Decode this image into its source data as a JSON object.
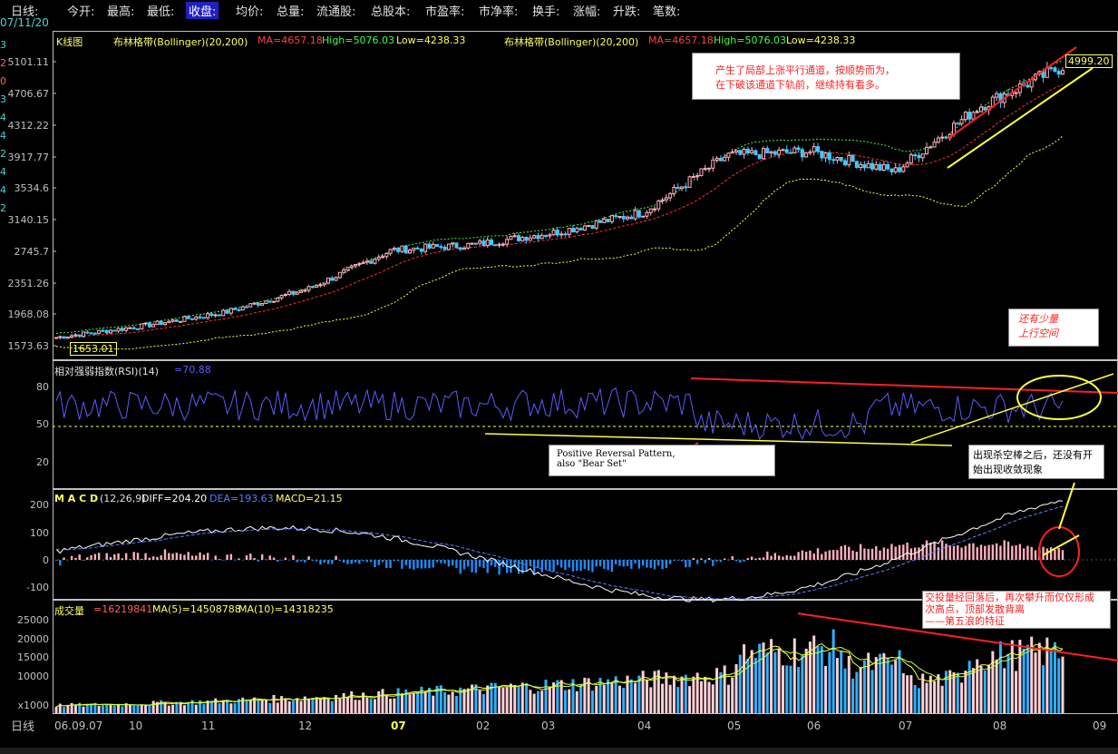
{
  "header": {
    "period": "日线:",
    "fields": [
      "今开:",
      "最高:",
      "最低:",
      "收盘:",
      "均价:",
      "总量:",
      "流通股:",
      "总股本:",
      "市盈率:",
      "市净率:",
      "换手:",
      "涨幅:",
      "升跌:",
      "笔数:"
    ],
    "selected_field": "收盘:",
    "date": "07/11/20",
    "left_strip": [
      "3",
      "2",
      "0",
      "3",
      "4",
      "4",
      "2",
      "4",
      "4",
      "2"
    ]
  },
  "panels": {
    "kline": {
      "name": "K线图",
      "indicator": "布林格带(Bollinger)(20,200)",
      "ma": "MA=4657.18",
      "high": "High=5076.03",
      "low": "Low=4238.33",
      "indicator_right": "布林格带(Bollinger)(20,200)",
      "ma_right": "MA=4657.18",
      "high_right": "High=5076.03",
      "low_right": "Low=4238.33",
      "max_label": "4999.20",
      "min_label": "1653.01",
      "yticks": [
        "5101.11",
        "4706.67",
        "4312.22",
        "3917.77",
        "3534.6",
        "3140.15",
        "2745.7",
        "2351.26",
        "1968.08",
        "1573.63"
      ]
    },
    "rsi": {
      "title": "相对强弱指数(RSI)(14)",
      "value": "=70.88",
      "yticks": [
        "80",
        "50",
        "20"
      ]
    },
    "macd": {
      "title": "M A C D",
      "params": "(12,26,9)",
      "diff": "DIFF=204.20",
      "dea": "DEA=193.63",
      "macd": "MACD=21.15",
      "yticks": [
        "200",
        "100",
        "0",
        "-100"
      ]
    },
    "volume": {
      "title": "成交量",
      "value": "=16219841",
      "ma5": "MA(5)=14508788",
      "ma10": "MA(10)=14318235",
      "yticks": [
        "25000",
        "20000",
        "15000",
        "10000",
        "x1000"
      ]
    }
  },
  "annotations": {
    "note1": [
      "产生了局部上涨平行通道，按顺势而为，",
      "在下破该通道下轨前，继续持有看多。"
    ],
    "note2": [
      "还有少量",
      "上行空间"
    ],
    "note3": [
      "Positive Reversal Pattern,",
      "also \"Bear Set\""
    ],
    "note4": [
      "出现杀空棒之后，还没有开",
      "始出现收敛现象"
    ],
    "note5": [
      "交投量经回落后，再次攀升而仅仅形成",
      "次高点，顶部发散背离",
      "——第五浪的特征"
    ]
  },
  "x_axis": {
    "period_label": "日线",
    "labels": [
      "06.09.07",
      "10",
      "11",
      "12",
      "07",
      "02",
      "03",
      "04",
      "05",
      "06",
      "07",
      "08",
      "09"
    ]
  },
  "chart_data": {
    "type": "line",
    "title": "K线图",
    "x": [
      "06.09.07",
      "10",
      "11",
      "12",
      "07",
      "02",
      "03",
      "04",
      "05",
      "06",
      "07",
      "08",
      "09"
    ],
    "series": [
      {
        "name": "收盘",
        "values": [
          1653.01,
          1790,
          1960,
          2250,
          2730,
          2800,
          2960,
          3200,
          3900,
          3950,
          3700,
          4500,
          4999.2
        ]
      }
    ],
    "ylim": [
      1573.63,
      5101.11
    ],
    "colors": {
      "up": "#ffb0c0",
      "down": "#40c8ff",
      "ma": "#ff3030",
      "band": "#40ff40",
      "band_low": "#ffff40",
      "rsi": "#5b5bff",
      "diff": "#ffffff",
      "dea": "#5b7bff"
    }
  }
}
